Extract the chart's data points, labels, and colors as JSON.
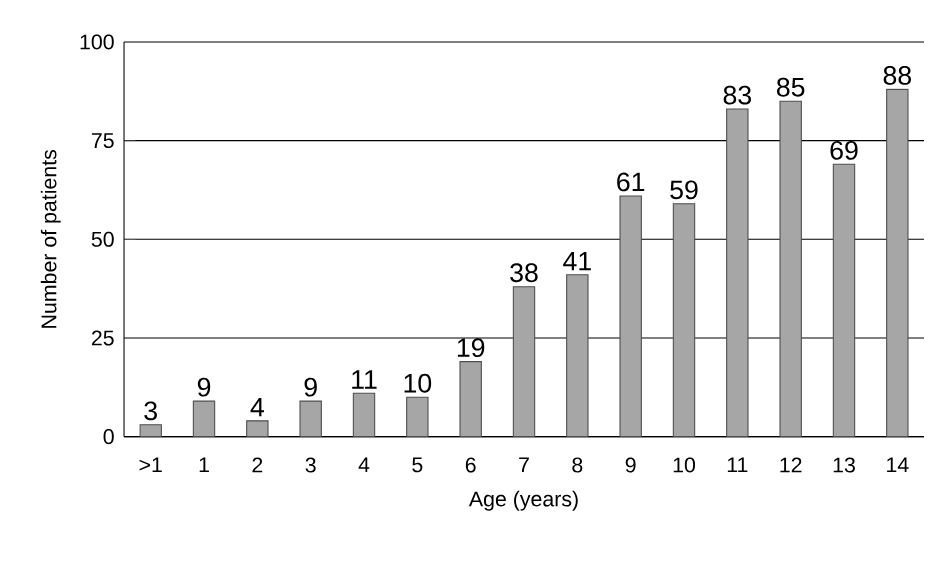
{
  "chart_data": {
    "type": "bar",
    "xlabel": "Age (years)",
    "ylabel": "Number of patients",
    "categories": [
      ">1",
      "1",
      "2",
      "3",
      "4",
      "5",
      "6",
      "7",
      "8",
      "9",
      "10",
      "11",
      "12",
      "13",
      "14"
    ],
    "values": [
      3,
      9,
      4,
      9,
      11,
      10,
      19,
      38,
      41,
      61,
      59,
      83,
      85,
      69,
      88
    ],
    "color": "#a6a6a6",
    "ylim": [
      0,
      100
    ],
    "yticks": [
      0,
      25,
      50,
      75,
      100
    ],
    "grid": "y",
    "data_labels": true
  }
}
